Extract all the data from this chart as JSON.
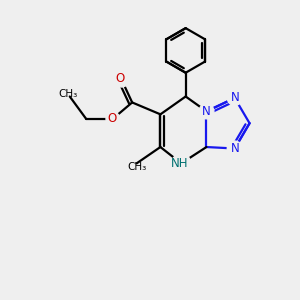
{
  "bg": "#efefef",
  "bond_color": "#000000",
  "n_color": "#1818ee",
  "o_color": "#cc0000",
  "nh_color": "#007070",
  "lw": 1.6,
  "fs": 8.5,
  "fs_small": 7.5,
  "xlim": [
    0,
    10
  ],
  "ylim": [
    0,
    10
  ]
}
